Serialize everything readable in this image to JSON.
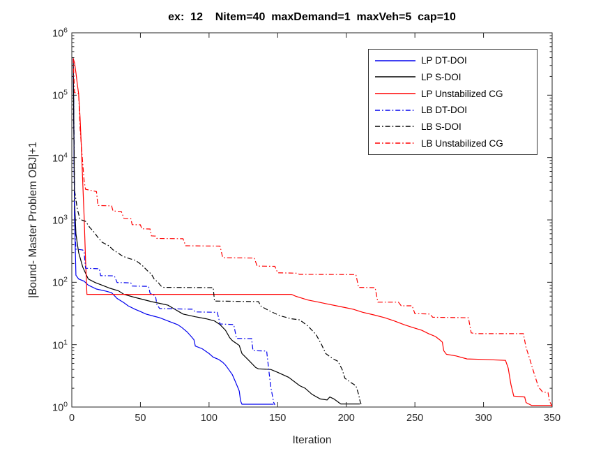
{
  "chart_data": {
    "type": "line",
    "title": "ex:  12    Nitem=40  maxDemand=1  maxVeh=5  cap=10",
    "xlabel": "Iteration",
    "ylabel": "|Bound- Master Problem OBJ|+1",
    "xlim": [
      0,
      350
    ],
    "x_ticks": [
      0,
      50,
      100,
      150,
      200,
      250,
      300,
      350
    ],
    "y_scale": "log10",
    "y_tick_exponents": [
      0,
      1,
      2,
      3,
      4,
      5,
      6
    ],
    "grid": false,
    "legend_position": "inside-top-right",
    "axis_color": "#262626",
    "series": [
      {
        "name": "LP DT-DOI",
        "color": "#0000ee",
        "style": "solid",
        "points": [
          [
            1,
            390000
          ],
          [
            1.5,
            30000
          ],
          [
            2,
            1200
          ],
          [
            3,
            130
          ],
          [
            5,
            113
          ],
          [
            9,
            104
          ],
          [
            12,
            90
          ],
          [
            18,
            78
          ],
          [
            25,
            72
          ],
          [
            29,
            68
          ],
          [
            33,
            55
          ],
          [
            38,
            47
          ],
          [
            41,
            42
          ],
          [
            46,
            37
          ],
          [
            50,
            34
          ],
          [
            54,
            31
          ],
          [
            60,
            28.5
          ],
          [
            64,
            27
          ],
          [
            70,
            24
          ],
          [
            77,
            21
          ],
          [
            80,
            19
          ],
          [
            84,
            16
          ],
          [
            87,
            13.5
          ],
          [
            89,
            12
          ],
          [
            90,
            9.5
          ],
          [
            95,
            8.6
          ],
          [
            100,
            7.2
          ],
          [
            103,
            6.3
          ],
          [
            107,
            5.8
          ],
          [
            110,
            5.2
          ],
          [
            112,
            4.7
          ],
          [
            114,
            4.1
          ],
          [
            117,
            3.3
          ],
          [
            119,
            2.6
          ],
          [
            121,
            2.05
          ],
          [
            122,
            1.8
          ],
          [
            123,
            1.25
          ],
          [
            124,
            1.11
          ],
          [
            147,
            1.11
          ]
        ]
      },
      {
        "name": "LP S-DOI",
        "color": "#000000",
        "style": "solid",
        "points": [
          [
            1,
            390000
          ],
          [
            1.5,
            20000
          ],
          [
            2,
            2000
          ],
          [
            3,
            600
          ],
          [
            5,
            300
          ],
          [
            8,
            175
          ],
          [
            12,
            113
          ],
          [
            17,
            99
          ],
          [
            22,
            90
          ],
          [
            28,
            80
          ],
          [
            34,
            73
          ],
          [
            38,
            64
          ],
          [
            45,
            58
          ],
          [
            52,
            53
          ],
          [
            58,
            49
          ],
          [
            64,
            46
          ],
          [
            70,
            43
          ],
          [
            75,
            37
          ],
          [
            81,
            31
          ],
          [
            90,
            28
          ],
          [
            98,
            26
          ],
          [
            104,
            24
          ],
          [
            108,
            21
          ],
          [
            112,
            17
          ],
          [
            115,
            13
          ],
          [
            117,
            11.6
          ],
          [
            122,
            9.7
          ],
          [
            124,
            7.2
          ],
          [
            129,
            5.6
          ],
          [
            134,
            4.3
          ],
          [
            136,
            4.1
          ],
          [
            145,
            4.0
          ],
          [
            150,
            3.6
          ],
          [
            158,
            3.0
          ],
          [
            166,
            2.2
          ],
          [
            170,
            2.0
          ],
          [
            175,
            1.6
          ],
          [
            181,
            1.35
          ],
          [
            186,
            1.3
          ],
          [
            188,
            1.45
          ],
          [
            191,
            1.35
          ],
          [
            196,
            1.12
          ],
          [
            210,
            1.12
          ]
        ]
      },
      {
        "name": "LP Unstabilized CG",
        "color": "#ff0000",
        "style": "solid",
        "points": [
          [
            1,
            390000
          ],
          [
            2,
            330000
          ],
          [
            3,
            230000
          ],
          [
            4,
            150000
          ],
          [
            5,
            105000
          ],
          [
            6,
            45000
          ],
          [
            7,
            14000
          ],
          [
            8,
            4000
          ],
          [
            9,
            1100
          ],
          [
            10,
            230
          ],
          [
            11,
            64
          ],
          [
            160,
            64
          ],
          [
            163,
            60
          ],
          [
            166,
            57
          ],
          [
            172,
            52
          ],
          [
            180,
            48
          ],
          [
            186,
            45
          ],
          [
            195,
            41
          ],
          [
            200,
            39
          ],
          [
            205,
            37
          ],
          [
            212,
            33
          ],
          [
            220,
            30
          ],
          [
            228,
            27
          ],
          [
            235,
            24
          ],
          [
            242,
            21
          ],
          [
            248,
            19
          ],
          [
            255,
            17
          ],
          [
            260,
            15
          ],
          [
            265,
            13.5
          ],
          [
            268,
            12
          ],
          [
            270,
            11
          ],
          [
            271,
            8
          ],
          [
            273,
            7.0
          ],
          [
            280,
            6.6
          ],
          [
            288,
            5.9
          ],
          [
            300,
            5.8
          ],
          [
            316,
            5.6
          ],
          [
            318,
            4.2
          ],
          [
            320,
            2.3
          ],
          [
            322,
            1.5
          ],
          [
            330,
            1.45
          ],
          [
            331,
            1.18
          ],
          [
            335,
            1.06
          ],
          [
            350,
            1.06
          ]
        ]
      },
      {
        "name": "LB DT-DOI",
        "color": "#0000ee",
        "style": "dashdot",
        "points": [
          [
            1,
            390000
          ],
          [
            1.5,
            30000
          ],
          [
            2,
            1050
          ],
          [
            3,
            340
          ],
          [
            8,
            330
          ],
          [
            9,
            300
          ],
          [
            10,
            168
          ],
          [
            20,
            165
          ],
          [
            21,
            128
          ],
          [
            31,
            127
          ],
          [
            33,
            99
          ],
          [
            43,
            98
          ],
          [
            44,
            87
          ],
          [
            56,
            86
          ],
          [
            57,
            67
          ],
          [
            60,
            62
          ],
          [
            61,
            60
          ],
          [
            62,
            44
          ],
          [
            64,
            38
          ],
          [
            88,
            37
          ],
          [
            90,
            33.5
          ],
          [
            106,
            33
          ],
          [
            108,
            21.5
          ],
          [
            118,
            21
          ],
          [
            120,
            12.6
          ],
          [
            131,
            12.5
          ],
          [
            132,
            8.0
          ],
          [
            142,
            7.9
          ],
          [
            143,
            5.0
          ],
          [
            144,
            3.2
          ],
          [
            145,
            2.1
          ],
          [
            146,
            1.6
          ],
          [
            147,
            1.2
          ],
          [
            148,
            1.08
          ]
        ]
      },
      {
        "name": "LB S-DOI",
        "color": "#000000",
        "style": "dashdot",
        "points": [
          [
            1,
            390000
          ],
          [
            2,
            3000
          ],
          [
            4,
            1500
          ],
          [
            6,
            1020
          ],
          [
            10,
            950
          ],
          [
            13,
            760
          ],
          [
            16,
            645
          ],
          [
            19,
            525
          ],
          [
            22,
            440
          ],
          [
            27,
            385
          ],
          [
            30,
            332
          ],
          [
            34,
            292
          ],
          [
            37,
            262
          ],
          [
            42,
            240
          ],
          [
            46,
            226
          ],
          [
            49,
            205
          ],
          [
            52,
            180
          ],
          [
            55,
            154
          ],
          [
            58,
            135
          ],
          [
            60,
            113
          ],
          [
            63,
            99
          ],
          [
            65,
            87
          ],
          [
            67,
            83
          ],
          [
            103,
            82
          ],
          [
            104,
            50
          ],
          [
            136,
            49
          ],
          [
            138,
            41
          ],
          [
            145,
            34
          ],
          [
            152,
            29
          ],
          [
            160,
            26
          ],
          [
            166,
            25
          ],
          [
            172,
            20
          ],
          [
            178,
            14.5
          ],
          [
            182,
            10
          ],
          [
            185,
            7.2
          ],
          [
            190,
            6.0
          ],
          [
            194,
            5.4
          ],
          [
            197,
            4.0
          ],
          [
            199,
            2.9
          ],
          [
            203,
            2.5
          ],
          [
            207,
            2.2
          ],
          [
            209,
            1.6
          ],
          [
            210,
            1.25
          ],
          [
            211,
            1.08
          ]
        ]
      },
      {
        "name": "LB Unstabilized CG",
        "color": "#ff0000",
        "style": "dashdot",
        "points": [
          [
            1,
            390000
          ],
          [
            2,
            110000
          ],
          [
            5,
            105000
          ],
          [
            6,
            30000
          ],
          [
            8,
            8000
          ],
          [
            9,
            4200
          ],
          [
            10,
            3100
          ],
          [
            18,
            2850
          ],
          [
            19,
            1700
          ],
          [
            29,
            1680
          ],
          [
            30,
            1390
          ],
          [
            36,
            1370
          ],
          [
            38,
            1060
          ],
          [
            43,
            1050
          ],
          [
            44,
            840
          ],
          [
            50,
            835
          ],
          [
            51,
            720
          ],
          [
            57,
            715
          ],
          [
            58,
            555
          ],
          [
            61,
            550
          ],
          [
            62,
            505
          ],
          [
            81,
            500
          ],
          [
            83,
            385
          ],
          [
            108,
            380
          ],
          [
            110,
            248
          ],
          [
            133,
            245
          ],
          [
            135,
            182
          ],
          [
            148,
            180
          ],
          [
            150,
            142
          ],
          [
            164,
            140
          ],
          [
            166,
            134
          ],
          [
            207,
            133
          ],
          [
            209,
            83
          ],
          [
            221,
            82
          ],
          [
            223,
            48
          ],
          [
            238,
            48
          ],
          [
            240,
            42
          ],
          [
            248,
            42
          ],
          [
            250,
            31.5
          ],
          [
            261,
            31
          ],
          [
            263,
            27.5
          ],
          [
            289,
            27
          ],
          [
            291,
            15.5
          ],
          [
            294,
            15
          ],
          [
            329,
            15
          ],
          [
            331,
            9
          ],
          [
            333,
            6.6
          ],
          [
            336,
            4
          ],
          [
            340,
            2.1
          ],
          [
            343,
            1.75
          ],
          [
            347,
            1.7
          ],
          [
            348,
            1.25
          ],
          [
            350,
            1.02
          ]
        ]
      }
    ]
  }
}
